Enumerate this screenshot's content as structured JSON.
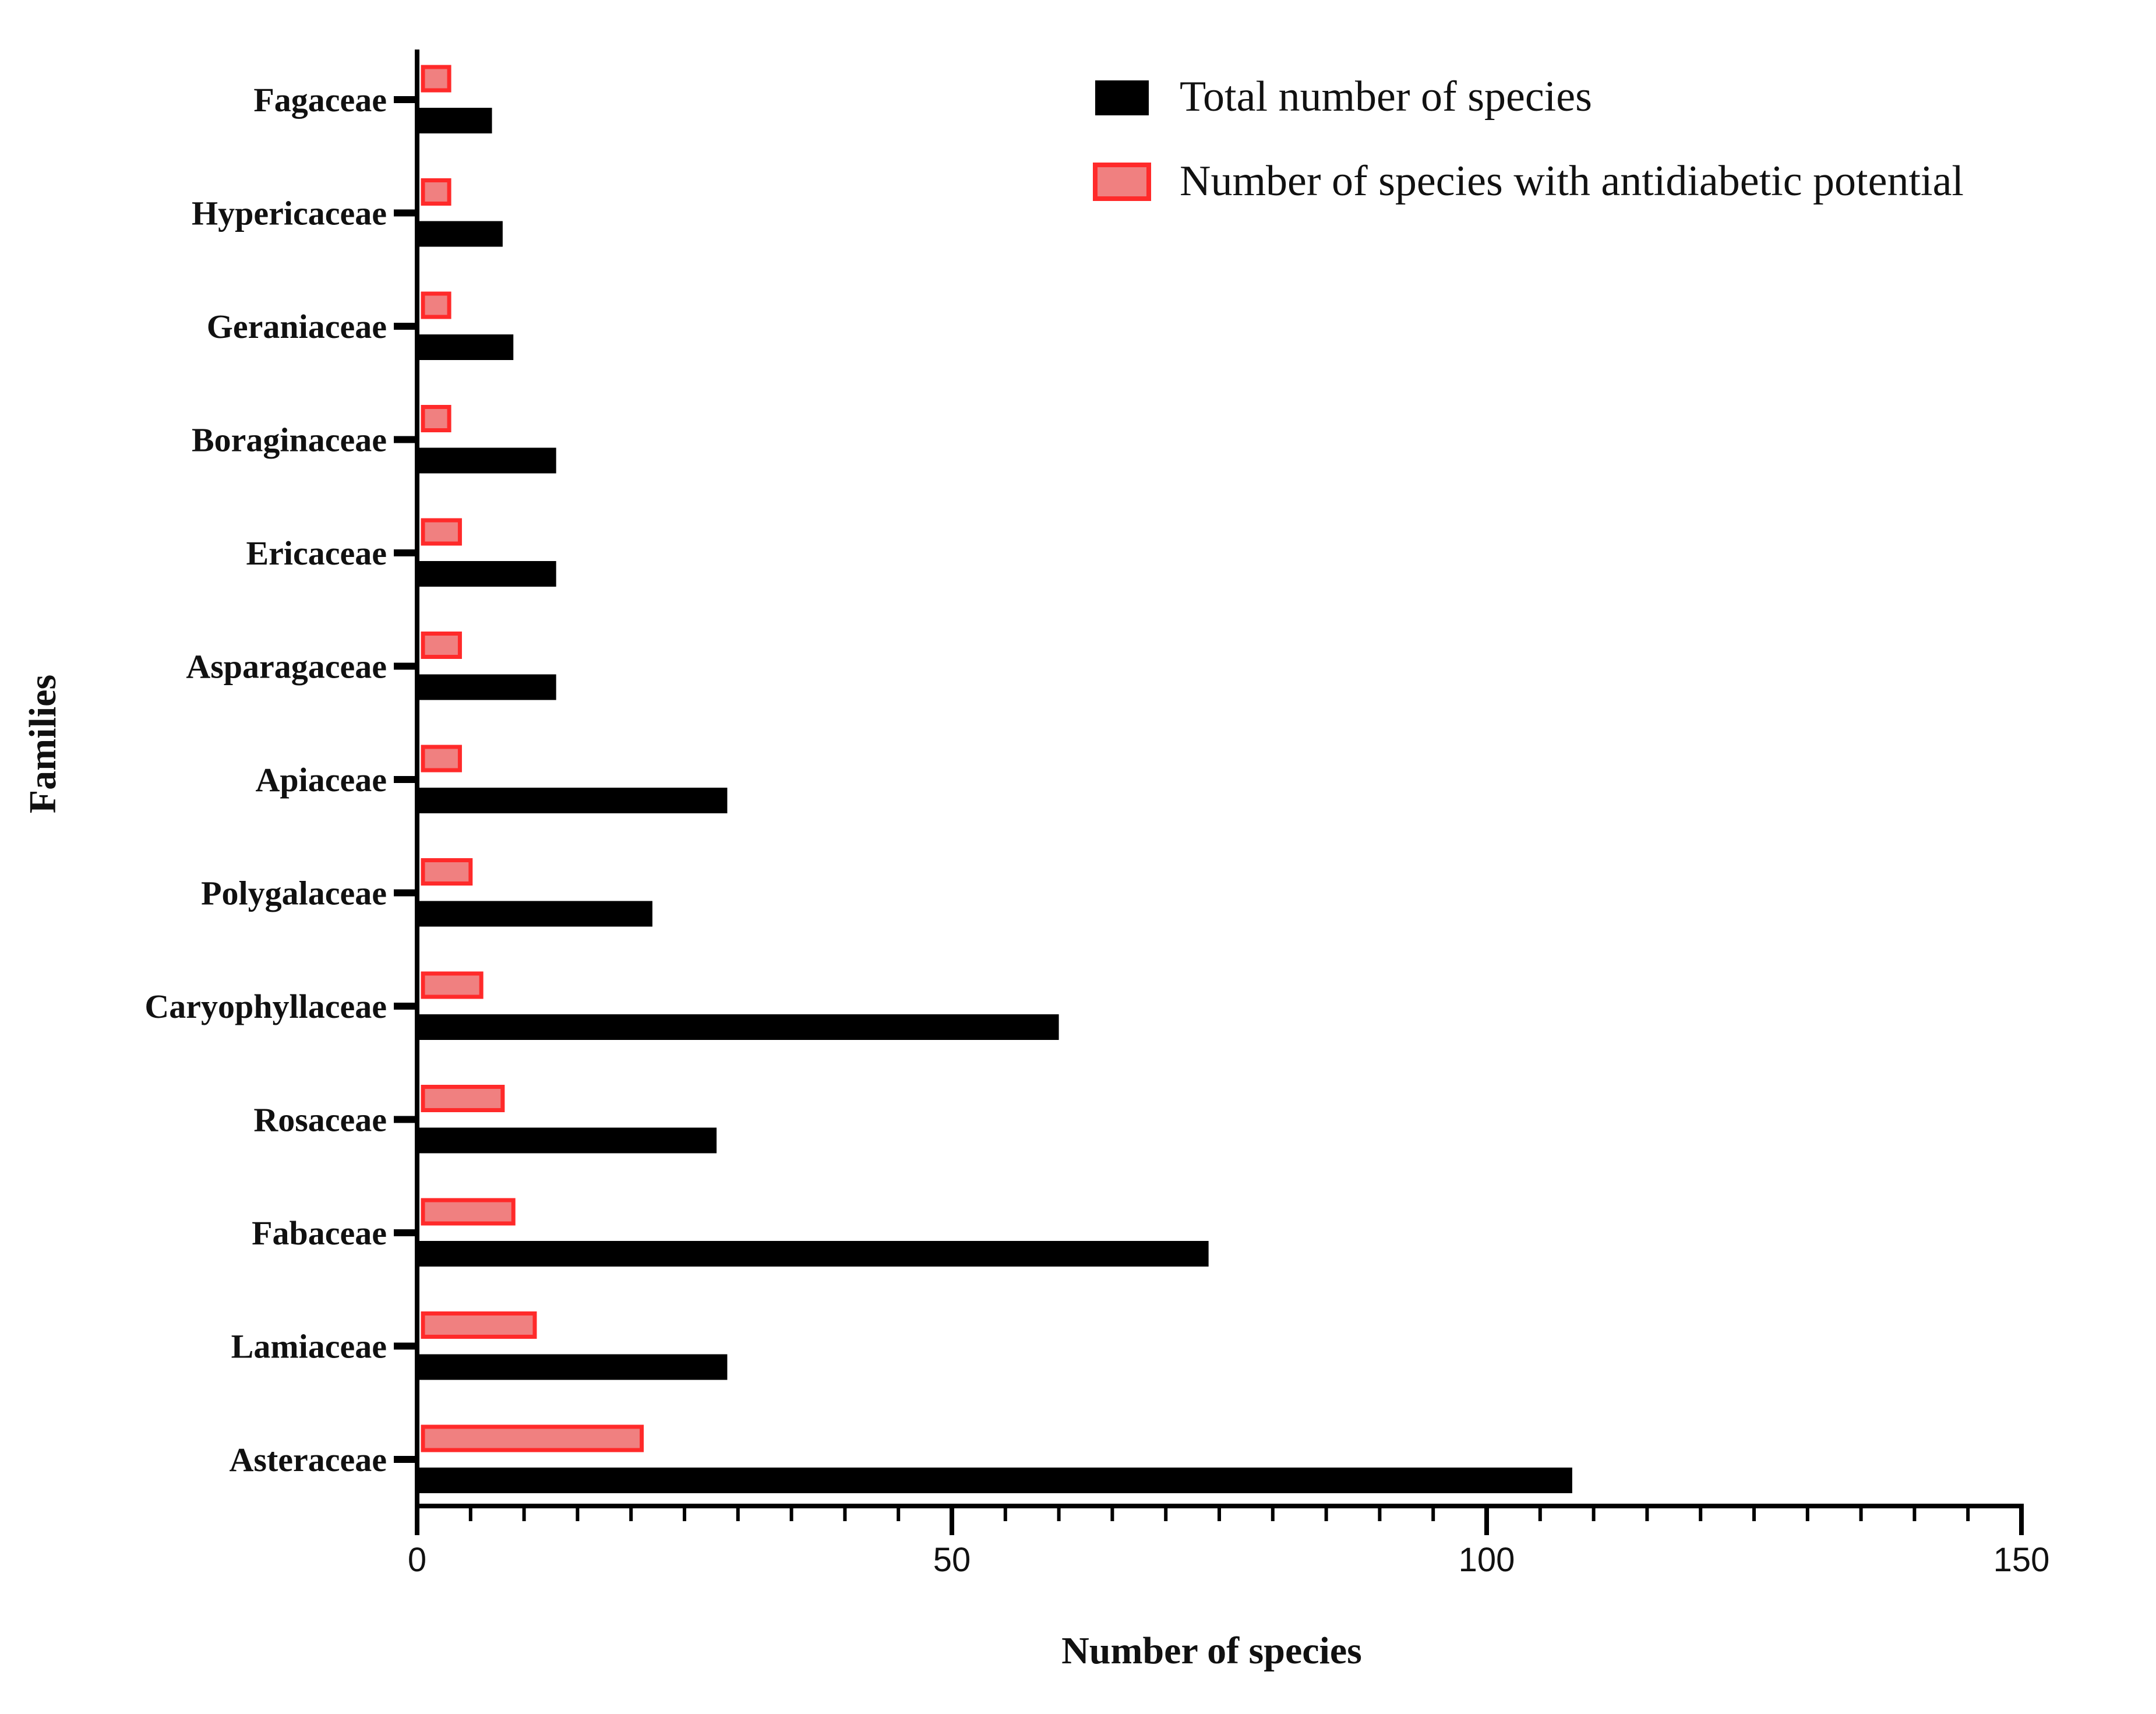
{
  "chart_data": {
    "type": "bar",
    "orientation": "horizontal",
    "categories": [
      "Asteraceae",
      "Lamiaceae",
      "Fabaceae",
      "Rosaceae",
      "Caryophyllaceae",
      "Polygalaceae",
      "Apiaceae",
      "Asparagaceae",
      "Ericaceae",
      "Boraginaceae",
      "Geraniaceae",
      "Hypericaceae",
      "Fagaceae"
    ],
    "series": [
      {
        "name": "Total number of species",
        "color": "#000000",
        "values": [
          108,
          29,
          74,
          28,
          60,
          22,
          29,
          13,
          13,
          13,
          9,
          8,
          7
        ]
      },
      {
        "name": "Number of species with antidiabetic potential",
        "color": "#f08080",
        "edge_color": "#ff2a2a",
        "values": [
          21,
          11,
          9,
          8,
          6,
          5,
          4,
          4,
          4,
          3,
          3,
          3,
          3
        ]
      }
    ],
    "xlim": [
      0,
      150
    ],
    "xticks": [
      "0",
      "50",
      "100",
      "150"
    ],
    "xminor_step": 5,
    "xlabel": "Number of species",
    "ylabel": "Families",
    "legend": {
      "position": "top-right"
    },
    "grid": false
  }
}
